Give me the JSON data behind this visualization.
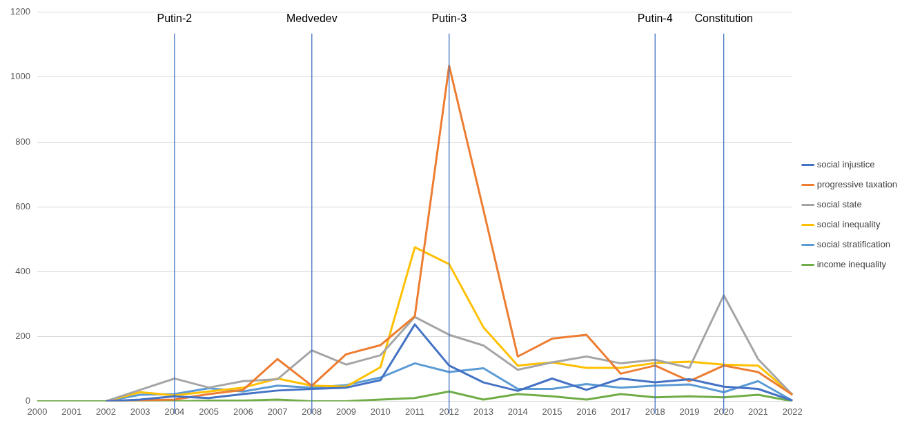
{
  "chart_data": {
    "type": "line",
    "categories": [
      "2000",
      "2001",
      "2002",
      "2003",
      "2004",
      "2005",
      "2006",
      "2007",
      "2008",
      "2009",
      "2010",
      "2011",
      "2012",
      "2013",
      "2014",
      "2015",
      "2016",
      "2017",
      "2018",
      "2019",
      "2020",
      "2021",
      "2022"
    ],
    "series": [
      {
        "name": "social injustice",
        "color": "#4472c4",
        "values": [
          null,
          null,
          0,
          5,
          15,
          10,
          22,
          33,
          38,
          42,
          65,
          237,
          110,
          58,
          32,
          70,
          35,
          70,
          58,
          68,
          45,
          38,
          2
        ]
      },
      {
        "name": "progressive taxation",
        "color": "#ed7d31",
        "values": [
          null,
          null,
          0,
          3,
          5,
          22,
          35,
          130,
          48,
          145,
          173,
          262,
          1035,
          590,
          138,
          193,
          205,
          85,
          110,
          62,
          110,
          90,
          20
        ]
      },
      {
        "name": "social state",
        "color": "#a5a5a5",
        "values": [
          null,
          null,
          0,
          35,
          70,
          42,
          62,
          68,
          157,
          113,
          142,
          260,
          205,
          172,
          97,
          120,
          138,
          117,
          128,
          103,
          327,
          130,
          20
        ]
      },
      {
        "name": "social inequality",
        "color": "#ffc000",
        "values": [
          null,
          null,
          0,
          28,
          18,
          30,
          42,
          70,
          48,
          45,
          105,
          475,
          423,
          228,
          110,
          120,
          103,
          103,
          118,
          122,
          113,
          110,
          20
        ]
      },
      {
        "name": "social stratification",
        "color": "#5b9bd5",
        "values": [
          null,
          null,
          0,
          20,
          22,
          40,
          30,
          48,
          42,
          50,
          73,
          117,
          90,
          102,
          38,
          38,
          53,
          42,
          48,
          52,
          28,
          62,
          2
        ]
      },
      {
        "name": "income inequality",
        "color": "#70ad47",
        "values": [
          0,
          0,
          0,
          0,
          0,
          2,
          2,
          5,
          0,
          0,
          5,
          10,
          30,
          5,
          22,
          15,
          5,
          22,
          12,
          15,
          12,
          20,
          0
        ]
      }
    ],
    "ylim": [
      0,
      1200
    ],
    "yticks": [
      0,
      200,
      400,
      600,
      800,
      1000,
      1200
    ],
    "grid": "y",
    "legend": "right",
    "marker": "none",
    "line_style": "solid",
    "ref_lines": [
      {
        "axis": "x",
        "value": "2004",
        "label": "Putin-2",
        "color": "#4472c4"
      },
      {
        "axis": "x",
        "value": "2008",
        "label": "Medvedev",
        "color": "#4472c4"
      },
      {
        "axis": "x",
        "value": "2012",
        "label": "Putin-3",
        "color": "#4472c4"
      },
      {
        "axis": "x",
        "value": "2018",
        "label": "Putin-4",
        "color": "#4472c4"
      },
      {
        "axis": "x",
        "value": "2020",
        "label": "Constitution",
        "color": "#4472c4"
      }
    ]
  }
}
